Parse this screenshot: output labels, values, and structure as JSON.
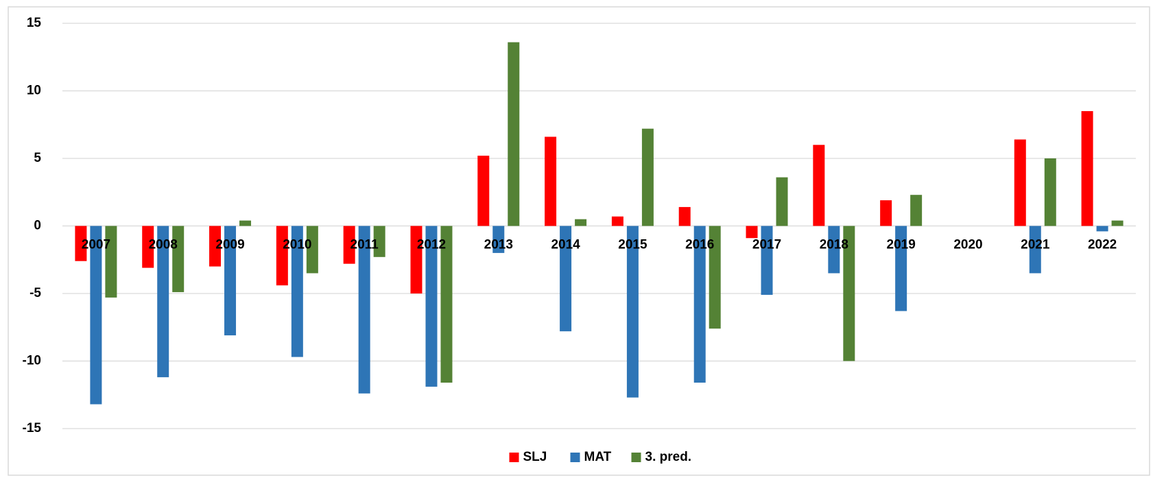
{
  "chart_data": {
    "type": "bar",
    "categories": [
      "2007",
      "2008",
      "2009",
      "2010",
      "2011",
      "2012",
      "2013",
      "2014",
      "2015",
      "2016",
      "2017",
      "2018",
      "2019",
      "2020",
      "2021",
      "2022"
    ],
    "series": [
      {
        "name": "SLJ",
        "color": "#ff0000",
        "values": [
          -2.6,
          -3.1,
          -3.0,
          -4.4,
          -2.8,
          -5.0,
          5.2,
          6.6,
          0.7,
          1.4,
          -0.9,
          6.0,
          1.9,
          null,
          6.4,
          8.5
        ]
      },
      {
        "name": "MAT",
        "color": "#2e75b6",
        "values": [
          -13.2,
          -11.2,
          -8.1,
          -9.7,
          -12.4,
          -11.9,
          -2.0,
          -7.8,
          -12.7,
          -11.6,
          -5.1,
          -3.5,
          -6.3,
          null,
          -3.5,
          -0.4
        ]
      },
      {
        "name": "3. pred.",
        "color": "#548235",
        "values": [
          -5.3,
          -4.9,
          0.4,
          -3.5,
          -2.3,
          -11.6,
          13.6,
          0.5,
          7.2,
          -7.6,
          3.6,
          -10.0,
          2.3,
          null,
          5.0,
          0.4
        ]
      }
    ],
    "ylim": [
      -15,
      15
    ],
    "yticks": [
      -15,
      -10,
      -5,
      0,
      5,
      10,
      15
    ],
    "grid": true,
    "legend": "bottom"
  }
}
